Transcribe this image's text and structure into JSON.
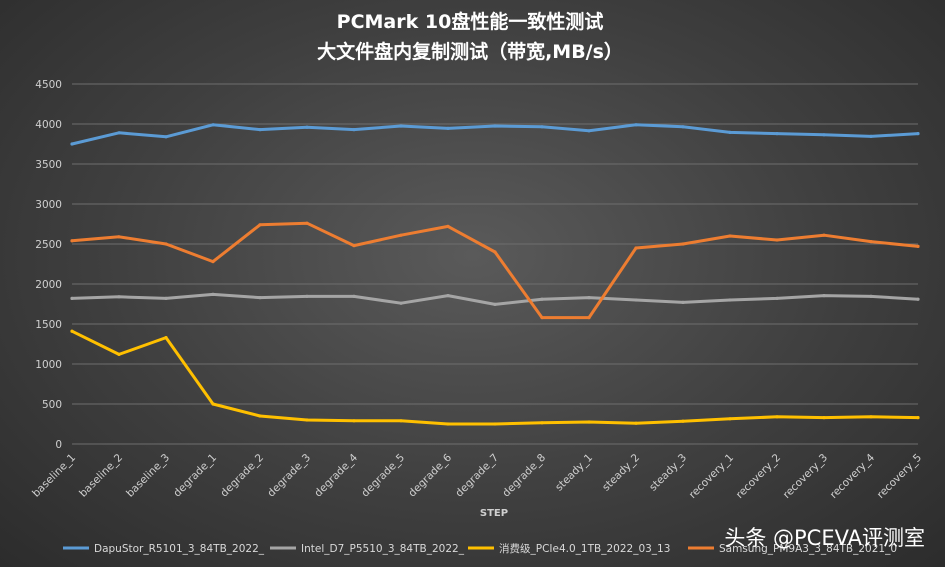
{
  "chart_data": {
    "type": "line",
    "title": "PCMark  10盘性能一致性测试",
    "subtitle": "大文件盘内复制测试（带宽,MB/s）",
    "xlabel": "STEP",
    "ylabel": "",
    "ylim": [
      0,
      4500
    ],
    "yticks": [
      0,
      500,
      1000,
      1500,
      2000,
      2500,
      3000,
      3500,
      4000,
      4500
    ],
    "grid": true,
    "legend_position": "bottom",
    "categories": [
      "baseline_1",
      "baseline_2",
      "baseline_3",
      "degrade_1",
      "degrade_2",
      "degrade_3",
      "degrade_4",
      "degrade_5",
      "degrade_6",
      "degrade_7",
      "degrade_8",
      "steady_1",
      "steady_2",
      "steady_3",
      "recovery_1",
      "recovery_2",
      "recovery_3",
      "recovery_4",
      "recovery_5"
    ],
    "series": [
      {
        "name": "DapuStor_R5101_3_84TB_2022_",
        "color": "#5b9bd5",
        "values": [
          3750,
          3890,
          3840,
          3990,
          3930,
          3960,
          3930,
          3975,
          3945,
          3975,
          3965,
          3915,
          3990,
          3965,
          3895,
          3880,
          3865,
          3845,
          3880
        ]
      },
      {
        "name": "Intel_D7_P5510_3_84TB_2022_",
        "color": "#a5a5a5",
        "values": [
          1820,
          1840,
          1820,
          1870,
          1830,
          1845,
          1845,
          1760,
          1855,
          1745,
          1810,
          1830,
          1800,
          1770,
          1800,
          1820,
          1855,
          1845,
          1810
        ]
      },
      {
        "name": "消费级_PCIe4.0_1TB_2022_03_13",
        "color": "#ffc000",
        "values": [
          1410,
          1120,
          1330,
          500,
          350,
          300,
          290,
          290,
          250,
          250,
          265,
          275,
          260,
          285,
          315,
          340,
          330,
          340,
          330
        ]
      },
      {
        "name": "Samsung_PM9A3_3_84TB_2021_0",
        "color": "#ed7d31",
        "values": [
          2540,
          2590,
          2500,
          2280,
          2740,
          2760,
          2480,
          2610,
          2720,
          2400,
          1580,
          1580,
          2450,
          2500,
          2600,
          2550,
          2610,
          2530,
          2470
        ]
      }
    ]
  },
  "watermark": "头条 @PCEVA评测室"
}
